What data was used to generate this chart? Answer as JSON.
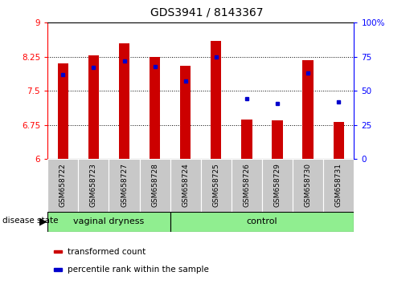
{
  "title": "GDS3941 / 8143367",
  "samples": [
    "GSM658722",
    "GSM658723",
    "GSM658727",
    "GSM658728",
    "GSM658724",
    "GSM658725",
    "GSM658726",
    "GSM658729",
    "GSM658730",
    "GSM658731"
  ],
  "red_values": [
    8.1,
    8.28,
    8.55,
    8.25,
    8.05,
    8.6,
    6.87,
    6.85,
    8.18,
    6.82
  ],
  "blue_percentiles": [
    62,
    67,
    72,
    68,
    57,
    75,
    44,
    41,
    63,
    42
  ],
  "ylim_left": [
    6.0,
    9.0
  ],
  "ylim_right": [
    0,
    100
  ],
  "yticks_left": [
    6.0,
    6.75,
    7.5,
    8.25,
    9.0
  ],
  "yticks_right": [
    0,
    25,
    50,
    75,
    100
  ],
  "ytick_labels_left": [
    "6",
    "6.75",
    "7.5",
    "8.25",
    "9"
  ],
  "ytick_labels_right": [
    "0",
    "25",
    "50",
    "75",
    "100%"
  ],
  "bar_color": "#cc0000",
  "marker_color": "#0000cc",
  "baseline": 6.0,
  "group1_label": "vaginal dryness",
  "group2_label": "control",
  "n_group1": 4,
  "n_group2": 6,
  "disease_state_label": "disease state",
  "legend_red": "transformed count",
  "legend_blue": "percentile rank within the sample",
  "group_bg_color": "#90ee90",
  "sample_label_bg": "#c8c8c8",
  "plot_bg": "#ffffff",
  "bar_width": 0.35,
  "title_fontsize": 10,
  "tick_fontsize": 7.5,
  "label_fontsize": 8,
  "legend_fontsize": 7.5
}
